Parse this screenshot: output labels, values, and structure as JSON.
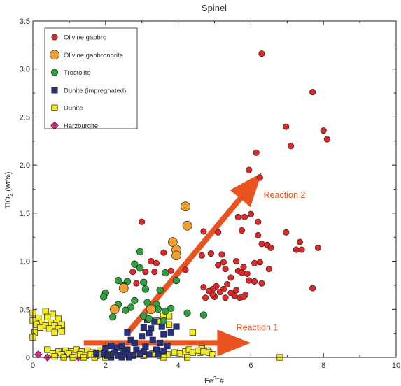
{
  "chart_data": {
    "type": "scatter",
    "title": "Spinel",
    "xlabel": "Fe3+#",
    "ylabel": "TiO2 (wt%)",
    "xlim": [
      0,
      10
    ],
    "ylim": [
      0,
      3.5
    ],
    "x_ticks": [
      "0",
      "2",
      "4",
      "6",
      "8",
      "10"
    ],
    "y_ticks": [
      "0",
      "0.5",
      "1.0",
      "1.5",
      "2.0",
      "2.5",
      "3.0",
      "3.5"
    ],
    "grid": false,
    "legend_position": "top-left",
    "series": [
      {
        "name": "Olivine gabbro",
        "marker": "circle",
        "size": "small",
        "color": "#e32626",
        "points": [
          [
            6.3,
            3.16
          ],
          [
            7.7,
            2.76
          ],
          [
            6.97,
            2.4
          ],
          [
            7.1,
            2.2
          ],
          [
            8.0,
            2.36
          ],
          [
            8.1,
            2.27
          ],
          [
            6.15,
            2.13
          ],
          [
            5.95,
            1.95
          ],
          [
            6.25,
            1.87
          ],
          [
            3.0,
            1.41
          ],
          [
            5.65,
            1.46
          ],
          [
            5.83,
            1.46
          ],
          [
            6.0,
            1.49
          ],
          [
            6.2,
            1.41
          ],
          [
            4.7,
            1.31
          ],
          [
            5.1,
            1.3
          ],
          [
            6.97,
            1.3
          ],
          [
            5.75,
            1.32
          ],
          [
            6.2,
            1.27
          ],
          [
            7.35,
            1.2
          ],
          [
            6.3,
            1.18
          ],
          [
            6.45,
            1.17
          ],
          [
            6.55,
            1.14
          ],
          [
            7.25,
            1.12
          ],
          [
            7.4,
            1.12
          ],
          [
            7.85,
            1.14
          ],
          [
            3.6,
            1.09
          ],
          [
            4.9,
            1.08
          ],
          [
            5.2,
            1.07
          ],
          [
            4.65,
            1.06
          ],
          [
            3.4,
            0.98
          ],
          [
            4.2,
            0.91
          ],
          [
            5.25,
            0.99
          ],
          [
            5.6,
            1.0
          ],
          [
            6.1,
            0.98
          ],
          [
            6.25,
            0.99
          ],
          [
            3.1,
            0.89
          ],
          [
            3.25,
            1.0
          ],
          [
            2.75,
            0.89
          ],
          [
            2.85,
            0.77
          ],
          [
            5.1,
            0.96
          ],
          [
            5.8,
            0.94
          ],
          [
            5.3,
            0.92
          ],
          [
            5.65,
            0.9
          ],
          [
            3.35,
            0.89
          ],
          [
            3.8,
            0.9
          ],
          [
            5.75,
            0.88
          ],
          [
            5.9,
            0.87
          ],
          [
            5.45,
            0.83
          ],
          [
            6.5,
            0.92
          ],
          [
            5.35,
            0.76
          ],
          [
            6.1,
            0.79
          ],
          [
            5.05,
            0.74
          ],
          [
            4.95,
            0.71
          ],
          [
            5.25,
            0.71
          ],
          [
            6.3,
            0.77
          ],
          [
            5.95,
            0.8
          ],
          [
            4.7,
            0.73
          ],
          [
            4.85,
            0.69
          ],
          [
            5.45,
            0.67
          ],
          [
            5.6,
            0.7
          ],
          [
            5.0,
            0.63
          ],
          [
            7.7,
            0.72
          ],
          [
            4.75,
            0.62
          ],
          [
            4.95,
            0.65
          ],
          [
            5.15,
            0.68
          ],
          [
            5.7,
            0.62
          ],
          [
            5.85,
            0.65
          ],
          [
            5.3,
            0.62
          ],
          [
            5.55,
            0.64
          ],
          [
            5.8,
            0.63
          ]
        ]
      },
      {
        "name": "Olivine gabbronorite",
        "marker": "circle",
        "size": "large",
        "color": "#f0a030",
        "points": [
          [
            4.2,
            1.57
          ],
          [
            4.25,
            1.37
          ],
          [
            3.85,
            1.2
          ],
          [
            3.95,
            1.12
          ],
          [
            3.95,
            1.06
          ],
          [
            2.5,
            0.72
          ],
          [
            2.25,
            0.5
          ],
          [
            3.25,
            0.5
          ]
        ]
      },
      {
        "name": "Troctolite",
        "marker": "circle",
        "size": "medium",
        "color": "#2ea23a",
        "points": [
          [
            2.95,
            1.1
          ],
          [
            2.8,
            0.97
          ],
          [
            3.65,
            0.88
          ],
          [
            2.95,
            0.93
          ],
          [
            2.35,
            0.8
          ],
          [
            2.6,
            0.79
          ],
          [
            3.05,
            0.78
          ],
          [
            3.95,
            0.8
          ],
          [
            2.5,
            0.75
          ],
          [
            3.1,
            0.71
          ],
          [
            3.5,
            0.7
          ],
          [
            2.0,
            0.67
          ],
          [
            1.95,
            0.63
          ],
          [
            2.8,
            0.59
          ],
          [
            2.35,
            0.55
          ],
          [
            3.15,
            0.57
          ],
          [
            3.4,
            0.55
          ],
          [
            2.7,
            0.52
          ],
          [
            3.8,
            0.51
          ],
          [
            2.55,
            0.49
          ],
          [
            3.45,
            0.5
          ],
          [
            3.65,
            0.48
          ],
          [
            4.25,
            0.46
          ],
          [
            2.2,
            0.42
          ],
          [
            3.05,
            0.43
          ],
          [
            4.7,
            0.44
          ],
          [
            3.2,
            0.4
          ],
          [
            3.6,
            0.38
          ]
        ]
      },
      {
        "name": "Dunite (impregnated)",
        "marker": "square",
        "size": "small",
        "color": "#242f86",
        "points": [
          [
            3.15,
            0.39
          ],
          [
            3.35,
            0.37
          ],
          [
            3.05,
            0.31
          ],
          [
            3.25,
            0.3
          ],
          [
            3.55,
            0.32
          ],
          [
            3.95,
            0.32
          ],
          [
            3.2,
            0.25
          ],
          [
            3.6,
            0.24
          ],
          [
            2.6,
            0.26
          ],
          [
            3.8,
            0.26
          ],
          [
            3.0,
            0.22
          ],
          [
            3.3,
            0.18
          ],
          [
            2.7,
            0.18
          ],
          [
            3.5,
            0.15
          ],
          [
            2.8,
            0.15
          ],
          [
            2.45,
            0.12
          ],
          [
            2.15,
            0.12
          ],
          [
            3.1,
            0.11
          ],
          [
            3.7,
            0.12
          ],
          [
            2.3,
            0.1
          ],
          [
            2.0,
            0.09
          ],
          [
            2.6,
            0.08
          ],
          [
            2.85,
            0.08
          ],
          [
            3.4,
            0.08
          ],
          [
            2.5,
            0.06
          ],
          [
            2.25,
            0.05
          ],
          [
            3.05,
            0.06
          ],
          [
            3.6,
            0.07
          ],
          [
            1.95,
            0.04
          ],
          [
            2.05,
            0.02
          ],
          [
            2.35,
            0.02
          ],
          [
            2.55,
            0.03
          ],
          [
            2.75,
            0.02
          ],
          [
            2.95,
            0.04
          ],
          [
            3.2,
            0.03
          ],
          [
            3.45,
            0.03
          ],
          [
            1.75,
            0.04
          ],
          [
            2.15,
            0.0
          ],
          [
            2.45,
            0.0
          ],
          [
            2.65,
            0.0
          ]
        ]
      },
      {
        "name": "Dunite",
        "marker": "square",
        "size": "small",
        "color": "#f5ec20",
        "points": [
          [
            0.0,
            0.46
          ],
          [
            0.35,
            0.48
          ],
          [
            0.55,
            0.45
          ],
          [
            0.15,
            0.41
          ],
          [
            0.4,
            0.42
          ],
          [
            0.7,
            0.4
          ],
          [
            0.0,
            0.38
          ],
          [
            0.25,
            0.36
          ],
          [
            0.5,
            0.36
          ],
          [
            0.65,
            0.36
          ],
          [
            0.1,
            0.34
          ],
          [
            0.35,
            0.33
          ],
          [
            0.6,
            0.33
          ],
          [
            0.8,
            0.34
          ],
          [
            0.2,
            0.31
          ],
          [
            0.45,
            0.3
          ],
          [
            0.7,
            0.3
          ],
          [
            0.05,
            0.26
          ],
          [
            0.6,
            0.26
          ],
          [
            0.8,
            0.27
          ],
          [
            0.0,
            0.21
          ],
          [
            3.4,
            0.38
          ],
          [
            3.6,
            0.43
          ],
          [
            3.75,
            0.43
          ],
          [
            3.5,
            0.37
          ],
          [
            3.75,
            0.34
          ],
          [
            4.4,
            0.26
          ],
          [
            4.65,
            0.09
          ],
          [
            4.8,
            0.07
          ],
          [
            4.6,
            0.05
          ],
          [
            0.4,
            0.08
          ],
          [
            0.7,
            0.06
          ],
          [
            0.9,
            0.07
          ],
          [
            1.05,
            0.06
          ],
          [
            1.2,
            0.08
          ],
          [
            1.35,
            0.06
          ],
          [
            1.5,
            0.07
          ],
          [
            1.65,
            0.05
          ],
          [
            1.85,
            0.07
          ],
          [
            2.0,
            0.06
          ],
          [
            0.55,
            0.04
          ],
          [
            0.8,
            0.03
          ],
          [
            1.0,
            0.04
          ],
          [
            1.15,
            0.02
          ],
          [
            1.3,
            0.03
          ],
          [
            1.45,
            0.02
          ],
          [
            1.6,
            0.03
          ],
          [
            1.75,
            0.02
          ],
          [
            1.9,
            0.03
          ],
          [
            2.1,
            0.03
          ],
          [
            0.6,
            0.01
          ],
          [
            0.85,
            0.0
          ],
          [
            1.1,
            0.0
          ],
          [
            1.4,
            0.0
          ],
          [
            1.7,
            0.0
          ],
          [
            2.0,
            0.0
          ],
          [
            2.9,
            0.04
          ],
          [
            3.05,
            0.02
          ],
          [
            3.3,
            0.04
          ],
          [
            3.5,
            0.02
          ],
          [
            3.7,
            0.03
          ],
          [
            3.9,
            0.05
          ],
          [
            4.05,
            0.04
          ],
          [
            4.2,
            0.06
          ],
          [
            4.3,
            0.08
          ],
          [
            4.4,
            0.05
          ],
          [
            4.55,
            0.07
          ],
          [
            4.7,
            0.06
          ],
          [
            4.85,
            0.05
          ],
          [
            4.95,
            0.03
          ],
          [
            3.6,
            0.0
          ],
          [
            4.25,
            0.0
          ],
          [
            6.8,
            0.0
          ]
        ]
      },
      {
        "name": "Harzburgite",
        "marker": "diamond",
        "size": "small",
        "color": "#e3268a",
        "points": [
          [
            0.15,
            0.03
          ],
          [
            0.4,
            0.0
          ],
          [
            0.6,
            0.03
          ],
          [
            0.8,
            0.02
          ],
          [
            0.95,
            0.04
          ],
          [
            1.25,
            0.0
          ]
        ]
      }
    ],
    "annotations": [
      {
        "text": "Reaction 1",
        "x0": 1.4,
        "y0": 0.15,
        "x1": 6.0,
        "y1": 0.15,
        "label_x": 5.6,
        "label_y": 0.28,
        "color": "#e8531f"
      },
      {
        "text": "Reaction 2",
        "x0": 2.65,
        "y0": 0.27,
        "x1": 6.3,
        "y1": 1.92,
        "label_x": 6.35,
        "label_y": 1.66,
        "color": "#e8531f"
      }
    ]
  }
}
